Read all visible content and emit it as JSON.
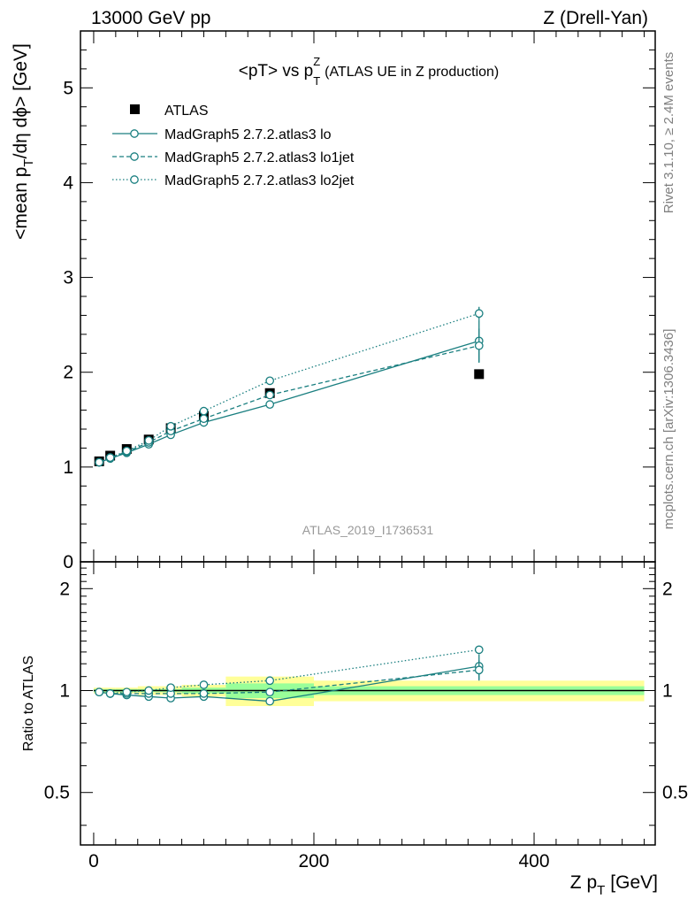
{
  "header": {
    "left": "13000 GeV pp",
    "right": "Z (Drell-Yan)"
  },
  "side_labels": {
    "rivet": "Rivet 3.1.10, ≥ 2.4M events",
    "mcplots": "mcplots.cern.ch [arXiv:1306.3436]"
  },
  "colors": {
    "data": "#000000",
    "mc": "#1a7f80",
    "band_inner": "#99ff99",
    "band_outer": "#ffff99"
  },
  "chart_data": [
    {
      "type": "line",
      "title_main": "<pT> vs p",
      "title_sup": "Z",
      "title_sub": "T",
      "title_suffix": "(ATLAS UE in Z production)",
      "ylabel": "<mean p",
      "ylabel_sub": "T",
      "ylabel_rest": "/dη dϕ> [GeV]",
      "watermark": "ATLAS_2019_I1736531",
      "xlim": [
        -12,
        510
      ],
      "ylim": [
        0,
        5.6
      ],
      "yticks": [
        0,
        1,
        2,
        3,
        4,
        5
      ],
      "ytick_labels": [
        "0",
        "1",
        "2",
        "3",
        "4",
        "5"
      ],
      "x": [
        5,
        15,
        30,
        50,
        70,
        100,
        160,
        350
      ],
      "series": [
        {
          "name": "ATLAS",
          "style": "data",
          "values": [
            1.06,
            1.12,
            1.19,
            1.29,
            1.41,
            1.54,
            1.78,
            1.98
          ]
        },
        {
          "name": "MadGraph5 2.7.2.atlas3 lo",
          "style": "solid",
          "values": [
            1.05,
            1.09,
            1.15,
            1.24,
            1.34,
            1.47,
            1.66,
            2.33
          ],
          "errors": [
            0.01,
            0.01,
            0.01,
            0.01,
            0.01,
            0.01,
            0.02,
            0.22
          ]
        },
        {
          "name": "MadGraph5 2.7.2.atlas3 lo1jet",
          "style": "dashed",
          "values": [
            1.05,
            1.1,
            1.16,
            1.26,
            1.38,
            1.51,
            1.76,
            2.28
          ],
          "errors": [
            0.01,
            0.01,
            0.01,
            0.01,
            0.01,
            0.01,
            0.02,
            0.18
          ]
        },
        {
          "name": "MadGraph5 2.7.2.atlas3 lo2jet",
          "style": "dotted",
          "values": [
            1.05,
            1.1,
            1.17,
            1.28,
            1.43,
            1.59,
            1.91,
            2.62
          ],
          "errors": [
            0.01,
            0.01,
            0.01,
            0.01,
            0.01,
            0.01,
            0.02,
            0.07
          ]
        }
      ],
      "legend": "top-left"
    },
    {
      "type": "line",
      "ylabel": "Ratio to ATLAS",
      "xlabel": "Z p",
      "xlabel_sub": "T",
      "xlabel_unit": "[GeV]",
      "xlim": [
        -12,
        510
      ],
      "ylim": [
        0.35,
        2.4
      ],
      "yscale": "log",
      "xticks": [
        0,
        200,
        400
      ],
      "xtick_labels": [
        "0",
        "200",
        "400"
      ],
      "yticks": [
        0.5,
        1,
        2
      ],
      "ytick_labels": [
        "0.5",
        "1",
        "2"
      ],
      "x": [
        5,
        15,
        30,
        50,
        70,
        100,
        160,
        350
      ],
      "reference_bins": [
        {
          "lo": 0,
          "hi": 10,
          "inner": 0.01,
          "outer": 0.02
        },
        {
          "lo": 10,
          "hi": 20,
          "inner": 0.01,
          "outer": 0.02
        },
        {
          "lo": 20,
          "hi": 40,
          "inner": 0.01,
          "outer": 0.02
        },
        {
          "lo": 40,
          "hi": 60,
          "inner": 0.01,
          "outer": 0.03
        },
        {
          "lo": 60,
          "hi": 80,
          "inner": 0.01,
          "outer": 0.03
        },
        {
          "lo": 80,
          "hi": 120,
          "inner": 0.02,
          "outer": 0.04
        },
        {
          "lo": 120,
          "hi": 200,
          "inner": 0.05,
          "outer": 0.1
        },
        {
          "lo": 200,
          "hi": 500,
          "inner": 0.03,
          "outer": 0.07
        }
      ],
      "series": [
        {
          "name": "MadGraph5 2.7.2.atlas3 lo",
          "style": "solid",
          "values": [
            0.99,
            0.98,
            0.97,
            0.96,
            0.95,
            0.96,
            0.93,
            1.18
          ],
          "errors": [
            0.005,
            0.005,
            0.005,
            0.005,
            0.005,
            0.006,
            0.01,
            0.1
          ]
        },
        {
          "name": "MadGraph5 2.7.2.atlas3 lo1jet",
          "style": "dashed",
          "values": [
            0.99,
            0.98,
            0.98,
            0.98,
            0.98,
            0.98,
            0.99,
            1.15
          ],
          "errors": [
            0.005,
            0.005,
            0.005,
            0.005,
            0.005,
            0.006,
            0.01,
            0.08
          ]
        },
        {
          "name": "MadGraph5 2.7.2.atlas3 lo2jet",
          "style": "dotted",
          "values": [
            0.99,
            0.98,
            0.99,
            1.0,
            1.02,
            1.04,
            1.07,
            1.32
          ],
          "errors": [
            0.005,
            0.005,
            0.005,
            0.005,
            0.005,
            0.006,
            0.01,
            0.03
          ]
        }
      ]
    }
  ]
}
